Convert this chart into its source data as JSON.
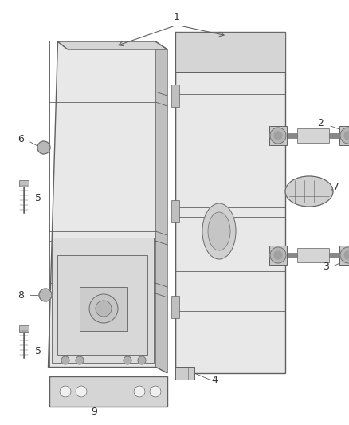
{
  "bg_color": "#ffffff",
  "lc": "#606060",
  "lc_light": "#999999",
  "fig_width": 4.38,
  "fig_height": 5.33,
  "dpi": 100,
  "door_fill": "#e8e8e8",
  "door_fill2": "#d5d5d5",
  "door_edge": "#c0c0c0",
  "panel_fill": "#dcdcdc",
  "shadow_fill": "#cccccc"
}
